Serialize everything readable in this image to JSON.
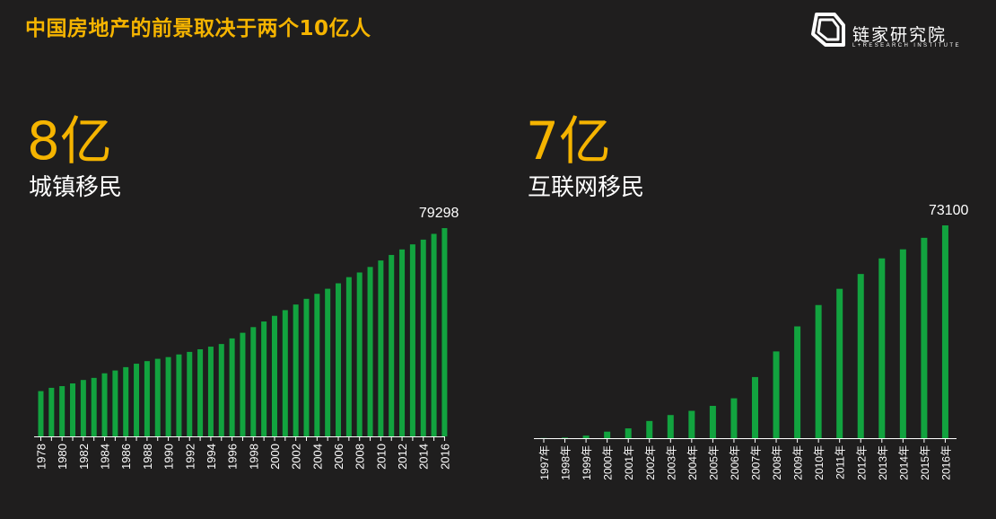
{
  "header": {
    "title": "中国房地产的前景取决于两个10亿人",
    "logo_name": "链家研究院",
    "logo_sub": "L+RESEARCH INSTITUTE"
  },
  "left": {
    "big": "8亿",
    "subtitle": "城镇移民"
  },
  "right": {
    "big": "7亿",
    "subtitle": "互联网移民"
  },
  "colors": {
    "accent": "#f5b400",
    "bar": "#12a33f",
    "background": "#1f1e1e"
  },
  "chart_data": [
    {
      "type": "bar",
      "bar_label": "79298",
      "categories": [
        "1978",
        "1979",
        "1980",
        "1981",
        "1982",
        "1983",
        "1984",
        "1985",
        "1986",
        "1987",
        "1988",
        "1989",
        "1990",
        "1991",
        "1992",
        "1993",
        "1994",
        "1995",
        "1996",
        "1997",
        "1998",
        "1999",
        "2000",
        "2001",
        "2002",
        "2003",
        "2004",
        "2005",
        "2006",
        "2007",
        "2008",
        "2009",
        "2010",
        "2011",
        "2012",
        "2013",
        "2014",
        "2015",
        "2016"
      ],
      "tick_labels": [
        "1978",
        "",
        "1980",
        "",
        "1982",
        "",
        "1984",
        "",
        "1986",
        "",
        "1988",
        "",
        "1990",
        "",
        "1992",
        "",
        "1994",
        "",
        "1996",
        "",
        "1998",
        "",
        "2000",
        "",
        "2002",
        "",
        "2004",
        "",
        "2006",
        "",
        "2008",
        "",
        "2010",
        "",
        "2012",
        "",
        "2014",
        "",
        "2016"
      ],
      "values": [
        17245,
        18495,
        19140,
        20171,
        21480,
        22274,
        24017,
        25094,
        26366,
        27674,
        28661,
        29540,
        30195,
        31203,
        32175,
        33173,
        34169,
        35174,
        37304,
        39449,
        41608,
        43748,
        45906,
        48064,
        50212,
        52376,
        54283,
        56212,
        58288,
        60633,
        62403,
        64512,
        66978,
        69079,
        71182,
        73111,
        74916,
        77116,
        79298
      ],
      "ylim": [
        0,
        80000
      ]
    },
    {
      "type": "bar",
      "bar_label": "73100",
      "categories": [
        "1997年",
        "1998年",
        "1999年",
        "2000年",
        "2001年",
        "2002年",
        "2003年",
        "2004年",
        "2005年",
        "2006年",
        "2007年",
        "2008年",
        "2009年",
        "2010年",
        "2011年",
        "2012年",
        "2013年",
        "2014年",
        "2015年",
        "2016年"
      ],
      "values": [
        62,
        210,
        890,
        2250,
        3370,
        5910,
        7950,
        9400,
        11100,
        13700,
        21000,
        29800,
        38400,
        45730,
        51310,
        56400,
        61758,
        64875,
        68826,
        73100
      ],
      "ylim": [
        0,
        73100
      ]
    }
  ]
}
